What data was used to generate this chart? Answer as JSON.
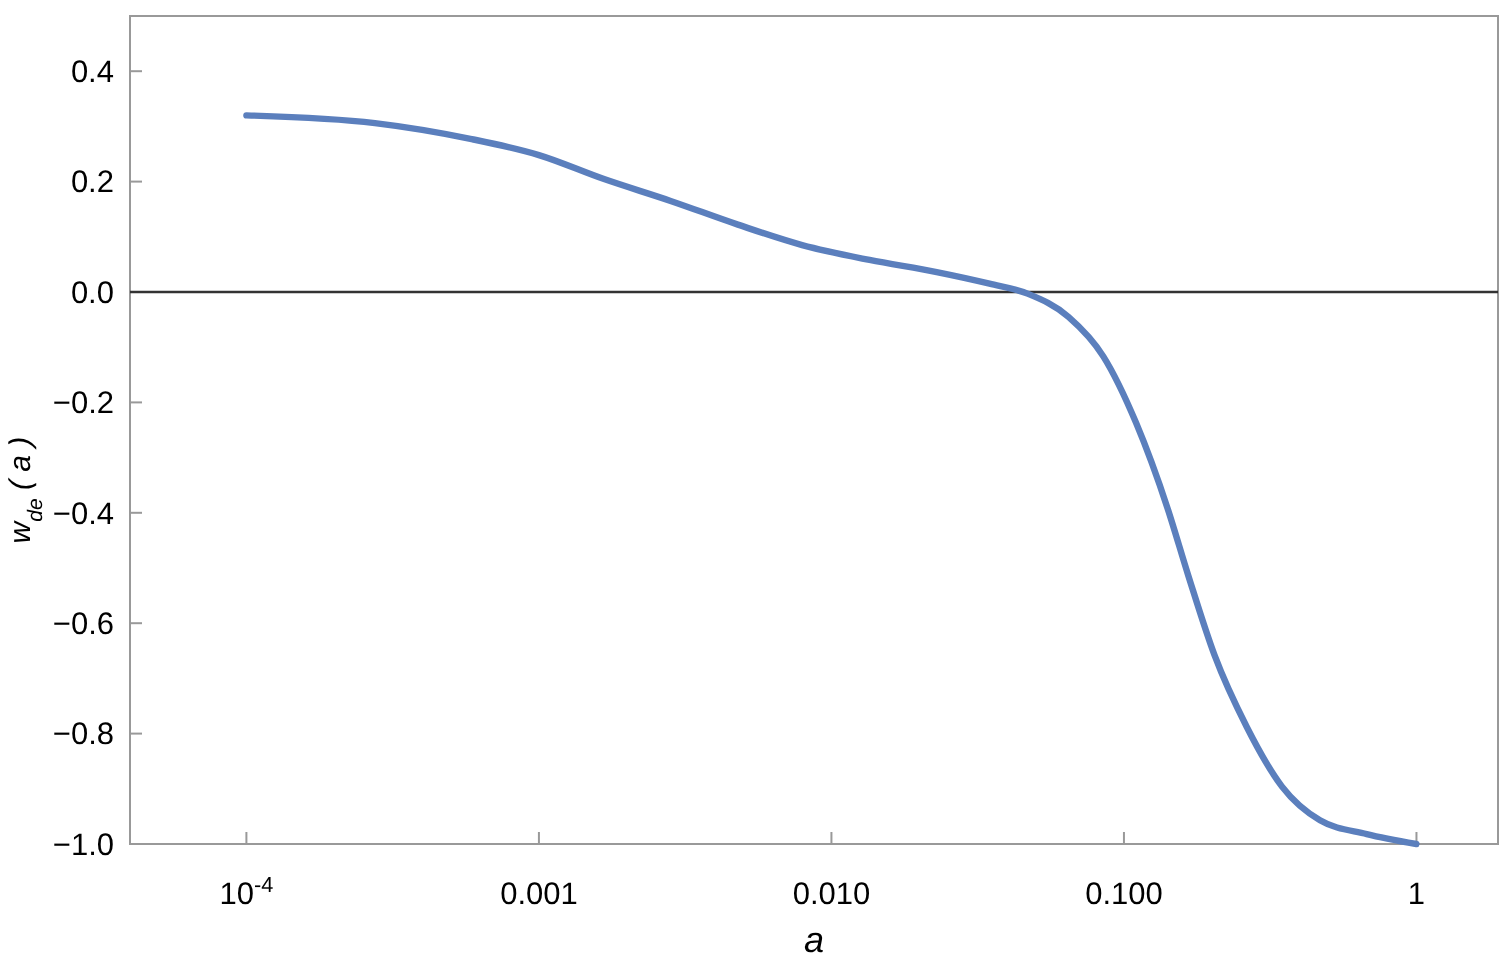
{
  "chart_data": {
    "type": "line",
    "xlabel": "a",
    "ylabel": "w$_{de}$ ( a )",
    "log": "x",
    "xlim": [
      4e-05,
      1.9
    ],
    "ylim": [
      -1.0,
      0.5
    ],
    "xticks": [
      {
        "value": 0.0001,
        "label": "10$^{-4}$"
      },
      {
        "value": 0.001,
        "label": "0.001"
      },
      {
        "value": 0.01,
        "label": "0.010"
      },
      {
        "value": 0.1,
        "label": "0.100"
      },
      1
    ],
    "yticks": [
      {
        "value": -1.0,
        "label": "−1.0"
      },
      {
        "value": -0.8,
        "label": "−0.8"
      },
      {
        "value": -0.6,
        "label": "−0.6"
      },
      {
        "value": -0.4,
        "label": "−0.4"
      },
      {
        "value": -0.2,
        "label": "−0.2"
      },
      {
        "value": 0,
        "label": "0.0"
      },
      {
        "value": 0.2,
        "label": "0.2"
      },
      {
        "value": 0.4,
        "label": "0.4"
      }
    ],
    "grid": false,
    "line_style": "solid",
    "marker": "none",
    "ref_lines": [
      {
        "axis": "y",
        "value": 0,
        "color": "#333333"
      }
    ],
    "series": [
      {
        "color": "#5b7fbd",
        "x": [
          0.0001,
          0.000275,
          0.000589,
          0.001,
          0.00166,
          0.00282,
          0.00479,
          0.00794,
          0.0135,
          0.0229,
          0.0347,
          0.0468,
          0.0646,
          0.0851,
          0.11,
          0.141,
          0.166,
          0.204,
          0.263,
          0.347,
          0.468,
          0.676,
          1
        ],
        "values": [
          0.32,
          0.306,
          0.277,
          0.248,
          0.205,
          0.165,
          0.122,
          0.085,
          0.058,
          0.036,
          0.015,
          -0.003,
          -0.045,
          -0.117,
          -0.237,
          -0.392,
          -0.514,
          -0.658,
          -0.788,
          -0.896,
          -0.957,
          -0.982,
          -1.0
        ]
      }
    ]
  }
}
